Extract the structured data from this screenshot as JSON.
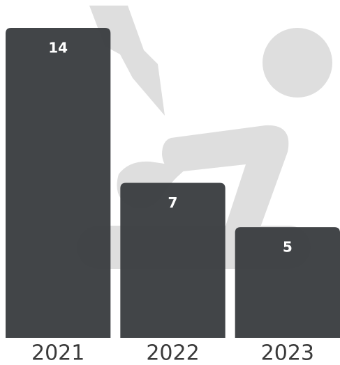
{
  "chart_data": {
    "type": "bar",
    "categories": [
      "2021",
      "2022",
      "2023"
    ],
    "values": [
      14,
      7,
      5
    ],
    "color": "#3c3f42"
  }
}
